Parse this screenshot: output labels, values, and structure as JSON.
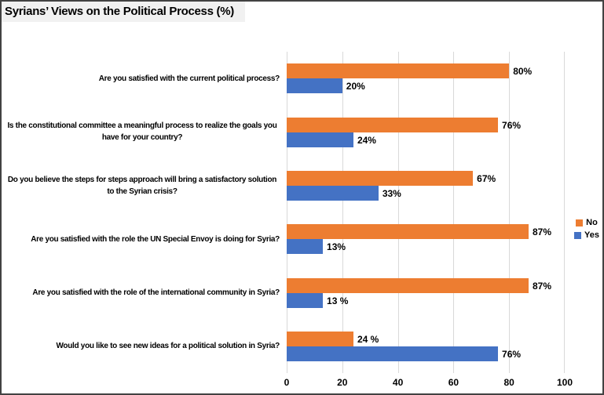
{
  "title": "Syrians’ Views on the Political Process (%)",
  "legend": {
    "items": [
      {
        "label": "No",
        "color": "#ED7D31"
      },
      {
        "label": "Yes",
        "color": "#4472C4"
      }
    ],
    "position": "right"
  },
  "chart_data": {
    "type": "bar",
    "orientation": "horizontal",
    "title": "Syrians’ Views on the Political Process (%)",
    "categories": [
      "Are you satisfied with the current political process?",
      "Is the constitutional committee a meaningful process to realize the goals you have for your country?",
      "Do you believe the steps for steps approach will bring a satisfactory solution to the Syrian crisis?",
      "Are you satisfied with the role the UN Special Envoy is doing for Syria?",
      "Are you satisfied with the role of the international community in Syria?",
      "Would you like to see new ideas for a political solution in Syria?"
    ],
    "series": [
      {
        "name": "No",
        "color": "#ED7D31",
        "values": [
          80,
          76,
          67,
          87,
          87,
          24
        ],
        "labels": [
          "80%",
          "76%",
          "67%",
          "87%",
          "87%",
          "24 %"
        ]
      },
      {
        "name": "Yes",
        "color": "#4472C4",
        "values": [
          20,
          24,
          33,
          13,
          13,
          76
        ],
        "labels": [
          "20%",
          "24%",
          "33%",
          "13%",
          "13 %",
          "76%"
        ]
      }
    ],
    "xlim": [
      0,
      100
    ],
    "x_ticks": [
      0,
      20,
      40,
      60,
      80,
      100
    ],
    "x_tick_labels": [
      "0",
      "20",
      "40",
      "60",
      "80",
      "100"
    ],
    "grid": true,
    "legend_position": "right",
    "colors": {
      "grid": "#D9D9D9",
      "title_bg": "#F1F1F1",
      "text": "#000000",
      "border": "#424242"
    }
  }
}
